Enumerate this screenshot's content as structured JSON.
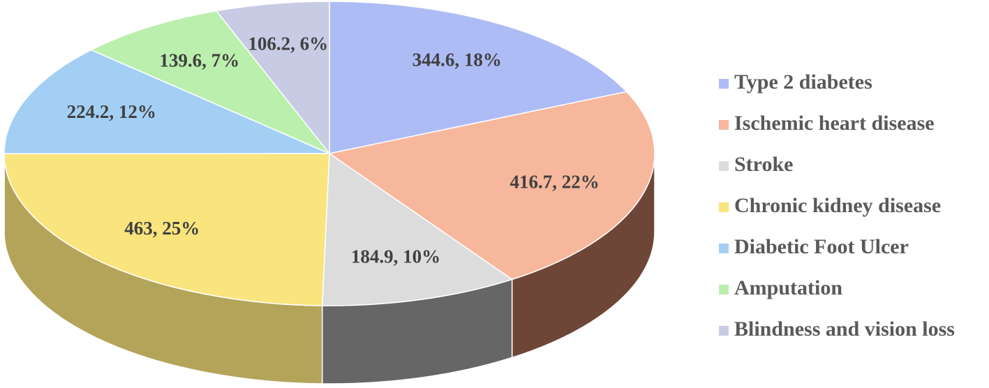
{
  "chart_data": {
    "type": "pie3d",
    "categories": [
      "Type 2 diabetes",
      "Ischemic heart disease",
      "Stroke",
      "Chronic kidney disease",
      "Diabetic Foot Ulcer",
      "Amputation",
      "Blindness and vision loss"
    ],
    "values": [
      344.6,
      416.7,
      184.9,
      463,
      224.2,
      139.6,
      106.2
    ],
    "value_labels": [
      "344.6, 18%",
      "416.7, 22%",
      "184.9, 10%",
      "463, 25%",
      "224.2, 12%",
      "139.6, 7%",
      "106.2, 6%"
    ],
    "colors": [
      "#aebcf6",
      "#f7b79c",
      "#dcdcdc",
      "#f9e47e",
      "#a3cff5",
      "#bbefad",
      "#c8cbe4"
    ],
    "side_colors": [
      "#5d6aa0",
      "#6e4638",
      "#666666",
      "#b3a45a",
      "#5f86a8",
      "#6f9a64",
      "#7a7d96"
    ],
    "legend": "right"
  }
}
